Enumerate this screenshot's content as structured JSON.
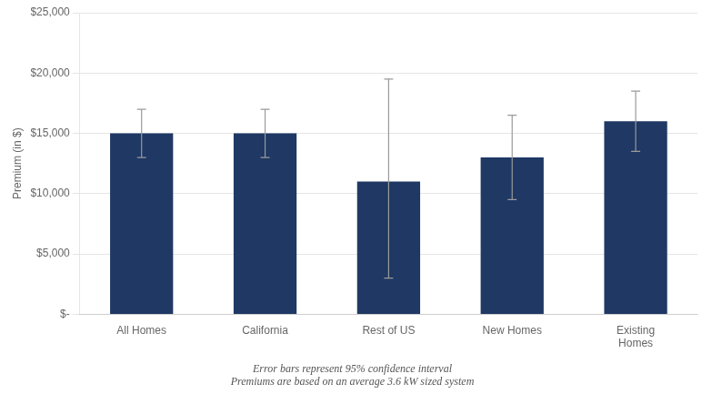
{
  "chart_data": {
    "type": "bar",
    "categories": [
      "All Homes",
      "California",
      "Rest of US",
      "New Homes",
      "Existing\nHomes"
    ],
    "values": [
      15000,
      15000,
      11000,
      13000,
      16000
    ],
    "errors_low": [
      2000,
      2000,
      8000,
      3500,
      2500
    ],
    "errors_high": [
      2000,
      2000,
      8500,
      3500,
      2500
    ],
    "color": "#1f3864",
    "ylabel": "Premium (in $)",
    "ylim": [
      0,
      25000
    ],
    "yticks": [
      {
        "value": 0,
        "label": "$-"
      },
      {
        "value": 5000,
        "label": "$5,000"
      },
      {
        "value": 10000,
        "label": "$10,000"
      },
      {
        "value": 15000,
        "label": "$15,000"
      },
      {
        "value": 20000,
        "label": "$20,000"
      },
      {
        "value": 25000,
        "label": "$25,000"
      }
    ],
    "annotations": [
      "Error bars represent 95% confidence interval",
      "Premiums are based on an average 3.6 kW sized system"
    ],
    "grid": true
  }
}
